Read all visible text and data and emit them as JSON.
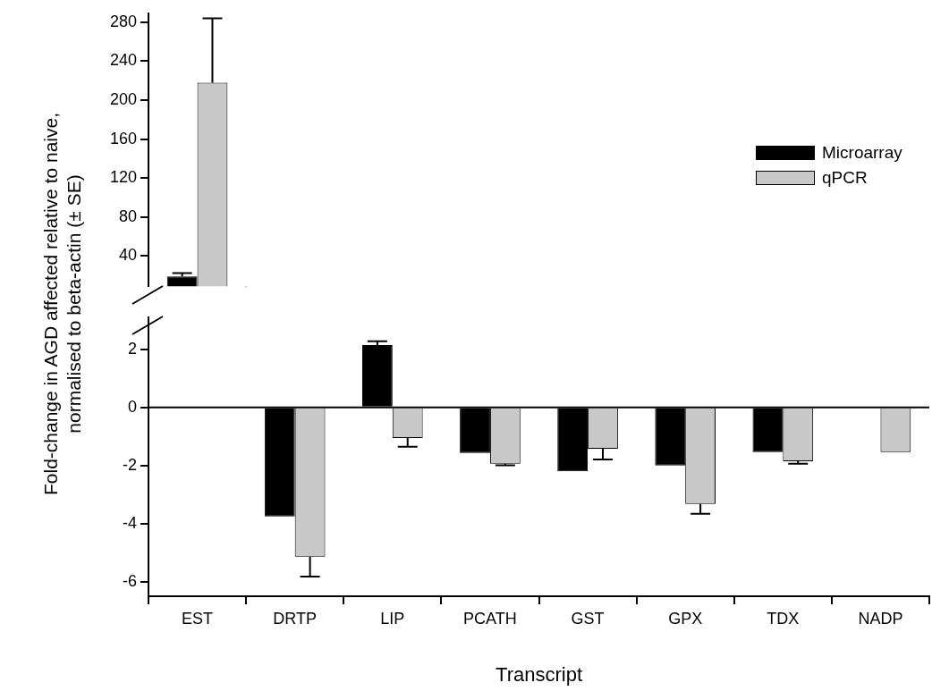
{
  "chart_data": [
    {
      "type": "bar",
      "categories": [
        null
      ],
      "ylim": [
        9,
        289
      ],
      "yticks": [
        40,
        80,
        120,
        160,
        200,
        240,
        280
      ],
      "tick_labels": "y",
      "legend": "right",
      "grid": false,
      "series": [
        {
          "name": "Microarray",
          "color": "#000000",
          "values": [
            19
          ],
          "errors": [
            3.5
          ]
        },
        {
          "name": "qPCR",
          "color": "#c8c8c8",
          "values": [
            218
          ],
          "errors": [
            66
          ]
        }
      ]
    },
    {
      "type": "bar",
      "categories": [
        "EST",
        "DRTP",
        "LIP",
        "PCATH",
        "GST",
        "GPX",
        "TDX",
        "NADP"
      ],
      "ylim": [
        -6.5,
        3.1
      ],
      "yticks": [
        -6,
        -4,
        -2,
        0,
        2
      ],
      "grid": false,
      "legend": false,
      "xlabel": "Transcript",
      "ylabel": "Fold-change in AGD affected relative to naive, normalised to beta-actin (± SE)",
      "ref_lines": [
        {
          "axis": "y",
          "value": 0
        }
      ],
      "series": [
        {
          "color": "#000000",
          "values": [
            null,
            -3.75,
            2.15,
            -1.57,
            -2.2,
            -2.0,
            -1.54,
            null
          ],
          "errors": [
            null,
            null,
            0.13,
            null,
            null,
            null,
            null,
            null
          ]
        },
        {
          "color": "#c8c8c8",
          "values": [
            null,
            -5.14,
            -1.05,
            -1.94,
            -1.42,
            -3.32,
            -1.85,
            -1.54
          ],
          "errors": [
            null,
            0.68,
            0.3,
            0.05,
            0.37,
            0.34,
            0.09,
            null
          ]
        }
      ]
    }
  ]
}
